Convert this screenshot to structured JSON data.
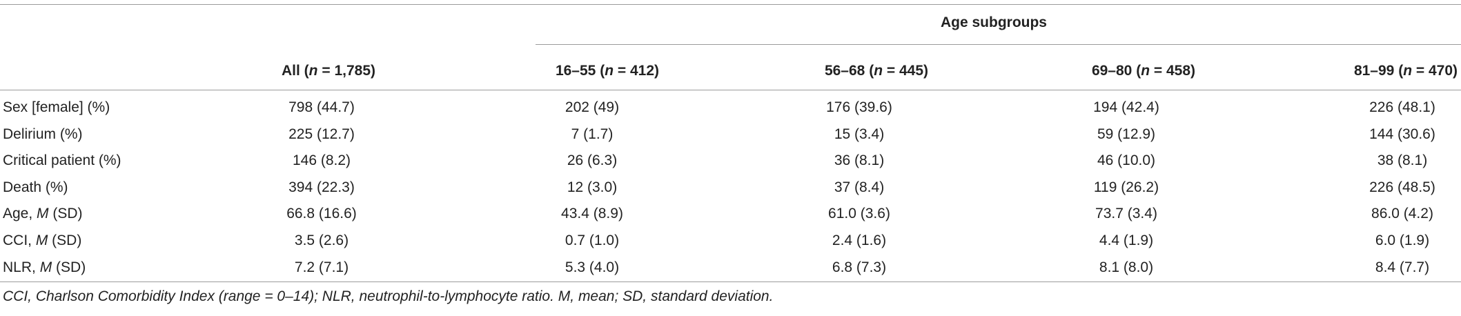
{
  "table": {
    "group_header": "Age subgroups",
    "columns": [
      {
        "label": "All",
        "n_text": "n",
        "n_value": "= 1,785"
      },
      {
        "label": "16–55",
        "n_text": "n",
        "n_value": "= 412"
      },
      {
        "label": "56–68",
        "n_text": "n",
        "n_value": "= 445"
      },
      {
        "label": "69–80",
        "n_text": "n",
        "n_value": "= 458"
      },
      {
        "label": "81–99",
        "n_text": "n",
        "n_value": "= 470"
      }
    ],
    "rows": [
      {
        "label": "Sex [female] (%)",
        "label_italic": "",
        "label_suffix": "",
        "values": [
          "798 (44.7)",
          "202 (49)",
          "176 (39.6)",
          "194 (42.4)",
          "226 (48.1)"
        ]
      },
      {
        "label": "Delirium (%)",
        "label_italic": "",
        "label_suffix": "",
        "values": [
          "225 (12.7)",
          "7 (1.7)",
          "15 (3.4)",
          "59 (12.9)",
          "144 (30.6)"
        ]
      },
      {
        "label": "Critical patient (%)",
        "label_italic": "",
        "label_suffix": "",
        "values": [
          "146 (8.2)",
          "26 (6.3)",
          "36 (8.1)",
          "46 (10.0)",
          "38 (8.1)"
        ]
      },
      {
        "label": "Death (%)",
        "label_italic": "",
        "label_suffix": "",
        "values": [
          "394 (22.3)",
          "12 (3.0)",
          "37 (8.4)",
          "119 (26.2)",
          "226 (48.5)"
        ]
      },
      {
        "label": "Age, ",
        "label_italic": "M",
        "label_suffix": " (SD)",
        "values": [
          "66.8 (16.6)",
          "43.4 (8.9)",
          "61.0 (3.6)",
          "73.7 (3.4)",
          "86.0 (4.2)"
        ]
      },
      {
        "label": "CCI, ",
        "label_italic": "M",
        "label_suffix": " (SD)",
        "values": [
          "3.5 (2.6)",
          "0.7 (1.0)",
          "2.4 (1.6)",
          "4.4 (1.9)",
          "6.0 (1.9)"
        ]
      },
      {
        "label": "NLR, ",
        "label_italic": "M",
        "label_suffix": " (SD)",
        "values": [
          "7.2 (7.1)",
          "5.3 (4.0)",
          "6.8 (7.3)",
          "8.1 (8.0)",
          "8.4 (7.7)"
        ]
      }
    ],
    "footnote": "CCI, Charlson Comorbidity Index (range = 0–14); NLR, neutrophil-to-lymphocyte ratio. M, mean; SD, standard deviation."
  },
  "colors": {
    "text": "#222222",
    "rule": "#9a9a9a",
    "background": "#ffffff"
  }
}
